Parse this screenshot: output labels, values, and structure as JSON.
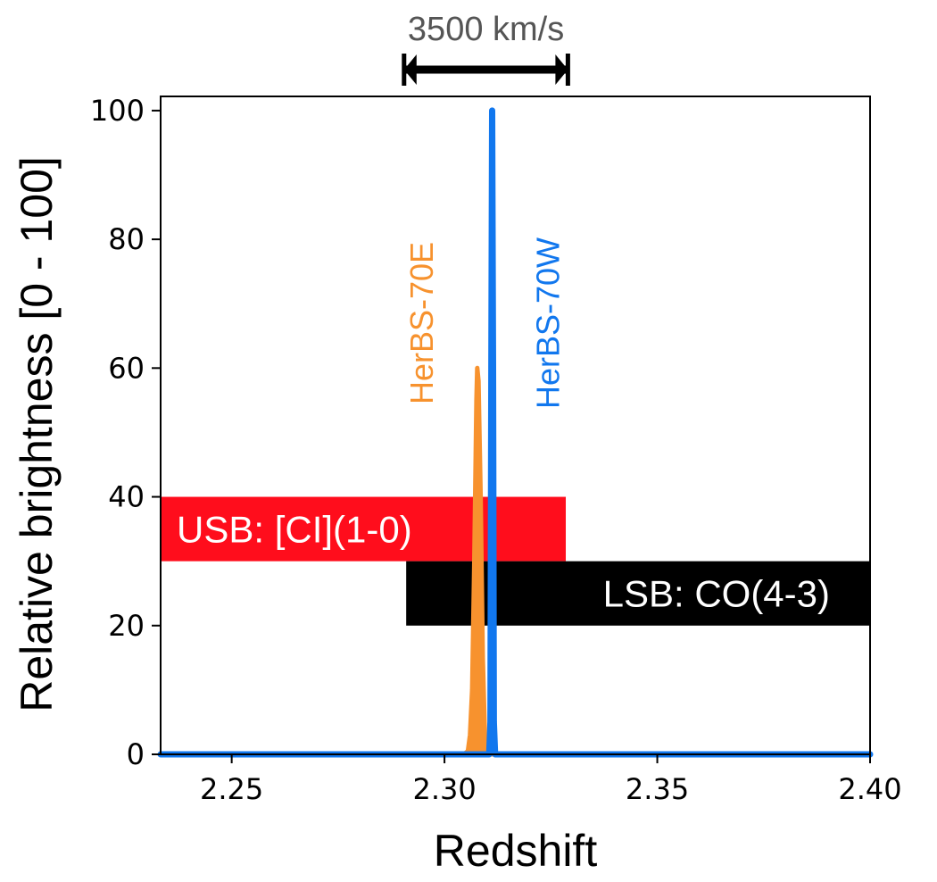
{
  "chart_data": {
    "type": "line",
    "title": "",
    "xlabel": "Redshift",
    "ylabel": "Relative brightness [0 - 100]",
    "xlim": [
      2.23,
      2.4
    ],
    "ylim": [
      0,
      100
    ],
    "x_ticks": [
      2.25,
      2.3,
      2.35,
      2.4
    ],
    "x_tick_labels": [
      "2.25",
      "2.30",
      "2.35",
      "2.40"
    ],
    "y_ticks": [
      0,
      20,
      40,
      60,
      80,
      100
    ],
    "y_tick_labels": [
      "0",
      "20",
      "40",
      "60",
      "80",
      "100"
    ],
    "grid": false,
    "scale_bar": {
      "label": "3500 km/s",
      "x_start": 2.2905,
      "x_end": 2.329
    },
    "bands": [
      {
        "label": "USB: [CI](1-0)",
        "x_start": 2.23,
        "x_end": 2.3285,
        "y_low": 30,
        "y_high": 40,
        "color": "#ff0d1c"
      },
      {
        "label": "LSB: CO(4-3)",
        "x_start": 2.291,
        "x_end": 2.4,
        "y_low": 20,
        "y_high": 30,
        "color": "#000000"
      }
    ],
    "series": [
      {
        "name": "HerBS-70E",
        "color": "#f7922e",
        "peak_x": 2.3077,
        "peak_y": 60,
        "x": [
          2.23,
          2.3045,
          2.3055,
          2.306,
          2.3065,
          2.307,
          2.3075,
          2.3077,
          2.308,
          2.3085,
          2.309,
          2.3095,
          2.31,
          2.4
        ],
        "y": [
          0,
          0,
          0.5,
          3,
          10,
          30,
          55,
          60,
          58,
          40,
          15,
          3,
          0,
          0
        ]
      },
      {
        "name": "HerBS-70W",
        "color": "#1177ee",
        "peak_x": 2.3112,
        "peak_y": 100,
        "x": [
          2.23,
          2.3105,
          2.3108,
          2.311,
          2.3112,
          2.3114,
          2.3116,
          2.3119,
          2.4
        ],
        "y": [
          0,
          0,
          5,
          60,
          100,
          60,
          5,
          0,
          0
        ]
      }
    ]
  }
}
